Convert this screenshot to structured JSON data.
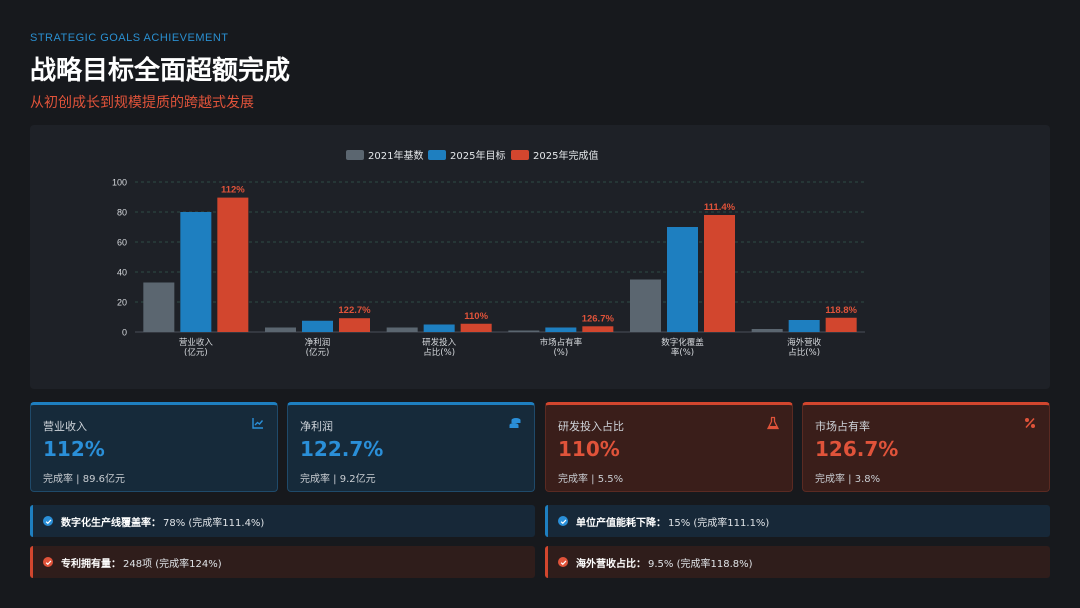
{
  "header": {
    "eyebrow": "STRATEGIC GOALS ACHIEVEMENT",
    "title": "战略目标全面超额完成",
    "subtitle": "从初创成长到规模提质的跨越式发展"
  },
  "colors": {
    "base": "#5b6670",
    "target": "#1e7fc0",
    "actual": "#d2462e",
    "accent_blue": "#2a8fd8",
    "accent_red": "#e0533a"
  },
  "chart_data": {
    "type": "bar",
    "categories": [
      [
        "营业收入",
        "(亿元)"
      ],
      [
        "净利润",
        "(亿元)"
      ],
      [
        "研发投入",
        "占比(%)"
      ],
      [
        "市场占有率",
        "(%)"
      ],
      [
        "数字化覆盖",
        "率(%)"
      ],
      [
        "海外营收",
        "占比(%)"
      ]
    ],
    "series": [
      {
        "name": "2021年基数",
        "values": [
          33,
          3,
          3,
          1,
          35,
          2
        ]
      },
      {
        "name": "2025年目标",
        "values": [
          80,
          7.5,
          5,
          3,
          70,
          8
        ]
      },
      {
        "name": "2025年完成值",
        "values": [
          89.6,
          9.2,
          5.5,
          3.8,
          78,
          9.5
        ]
      }
    ],
    "annotations": [
      "112%",
      "122.7%",
      "110%",
      "126.7%",
      "111.4%",
      "118.8%"
    ],
    "ylim": [
      0,
      100
    ],
    "yticks": [
      0,
      20,
      40,
      60,
      80,
      100
    ],
    "legend_position": "top-center",
    "grid": "horizontal dashed"
  },
  "kpis": [
    {
      "label": "营业收入",
      "value": "112%",
      "note": "完成率 | 89.6亿元",
      "icon": "line-chart-icon",
      "theme": "blue"
    },
    {
      "label": "净利润",
      "value": "122.7%",
      "note": "完成率 | 9.2亿元",
      "icon": "coins-icon",
      "theme": "blue"
    },
    {
      "label": "研发投入占比",
      "value": "110%",
      "note": "完成率 | 5.5%",
      "icon": "flask-icon",
      "theme": "red"
    },
    {
      "label": "市场占有率",
      "value": "126.7%",
      "note": "完成率 | 3.8%",
      "icon": "percent-icon",
      "theme": "red"
    }
  ],
  "highlights": [
    {
      "label": "数字化生产线覆盖率：",
      "value": "78% (完成率111.4%)",
      "theme": "blue"
    },
    {
      "label": "单位产值能耗下降：",
      "value": "15% (完成率111.1%)",
      "theme": "blue"
    },
    {
      "label": "专利拥有量：",
      "value": "248项 (完成率124%)",
      "theme": "red"
    },
    {
      "label": "海外营收占比：",
      "value": "9.5% (完成率118.8%)",
      "theme": "red"
    }
  ]
}
